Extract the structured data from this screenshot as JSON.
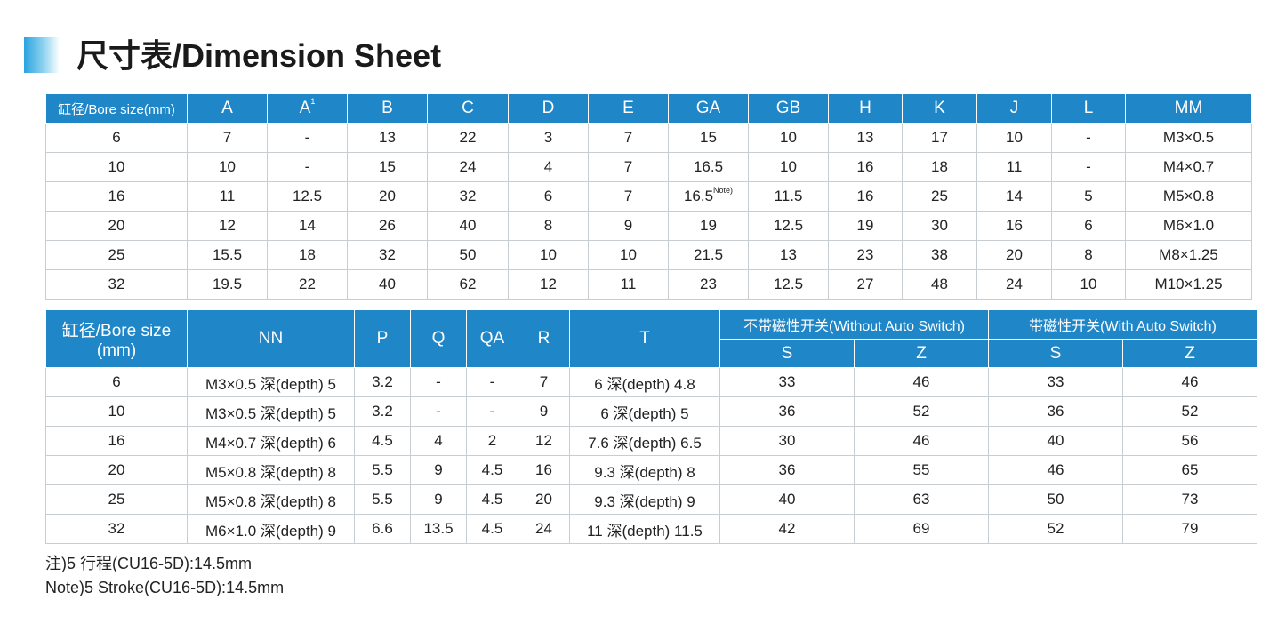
{
  "title": "尺寸表/Dimension Sheet",
  "table1": {
    "headers": [
      "缸径/Bore size(mm)",
      "A",
      "A",
      "B",
      "C",
      "D",
      "E",
      "GA",
      "GB",
      "H",
      "K",
      "J",
      "L",
      "MM"
    ],
    "header_sup": "1",
    "note_sup": "Note)",
    "rows": [
      [
        "6",
        "7",
        "-",
        "13",
        "22",
        "3",
        "7",
        "15",
        "10",
        "13",
        "17",
        "10",
        "-",
        "M3×0.5"
      ],
      [
        "10",
        "10",
        "-",
        "15",
        "24",
        "4",
        "7",
        "16.5",
        "10",
        "16",
        "18",
        "11",
        "-",
        "M4×0.7"
      ],
      [
        "16",
        "11",
        "12.5",
        "20",
        "32",
        "6",
        "7",
        "16.5",
        "11.5",
        "16",
        "25",
        "14",
        "5",
        "M5×0.8"
      ],
      [
        "20",
        "12",
        "14",
        "26",
        "40",
        "8",
        "9",
        "19",
        "12.5",
        "19",
        "30",
        "16",
        "6",
        "M6×1.0"
      ],
      [
        "25",
        "15.5",
        "18",
        "32",
        "50",
        "10",
        "10",
        "21.5",
        "13",
        "23",
        "38",
        "20",
        "8",
        "M8×1.25"
      ],
      [
        "32",
        "19.5",
        "22",
        "40",
        "62",
        "12",
        "11",
        "23",
        "12.5",
        "27",
        "48",
        "24",
        "10",
        "M10×1.25"
      ]
    ]
  },
  "table2": {
    "bore_header_1": "缸径/Bore size",
    "bore_header_2": "(mm)",
    "headers": [
      "NN",
      "P",
      "Q",
      "QA",
      "R",
      "T"
    ],
    "group_without": "不带磁性开关(Without Auto Switch)",
    "group_with": "带磁性开关(With Auto Switch)",
    "sub_s": "S",
    "sub_z": "Z",
    "rows": [
      [
        "6",
        "M3×0.5 深(depth) 5",
        "3.2",
        "-",
        "-",
        "7",
        "6 深(depth) 4.8",
        "33",
        "46",
        "33",
        "46"
      ],
      [
        "10",
        "M3×0.5 深(depth) 5",
        "3.2",
        "-",
        "-",
        "9",
        "6 深(depth) 5",
        "36",
        "52",
        "36",
        "52"
      ],
      [
        "16",
        "M4×0.7 深(depth) 6",
        "4.5",
        "4",
        "2",
        "12",
        "7.6 深(depth) 6.5",
        "30",
        "46",
        "40",
        "56"
      ],
      [
        "20",
        "M5×0.8 深(depth) 8",
        "5.5",
        "9",
        "4.5",
        "16",
        "9.3 深(depth) 8",
        "36",
        "55",
        "46",
        "65"
      ],
      [
        "25",
        "M5×0.8 深(depth) 8",
        "5.5",
        "9",
        "4.5",
        "20",
        "9.3 深(depth) 9",
        "40",
        "63",
        "50",
        "73"
      ],
      [
        "32",
        "M6×1.0 深(depth) 9",
        "6.6",
        "13.5",
        "4.5",
        "24",
        "11 深(depth) 11.5",
        "42",
        "69",
        "52",
        "79"
      ]
    ]
  },
  "notes": [
    "注)5 行程(CU16-5D):14.5mm",
    "Note)5 Stroke(CU16-5D):14.5mm"
  ],
  "colors": {
    "header_bg": "#1f86c8",
    "accent_gradient_start": "#2aa3e0"
  }
}
